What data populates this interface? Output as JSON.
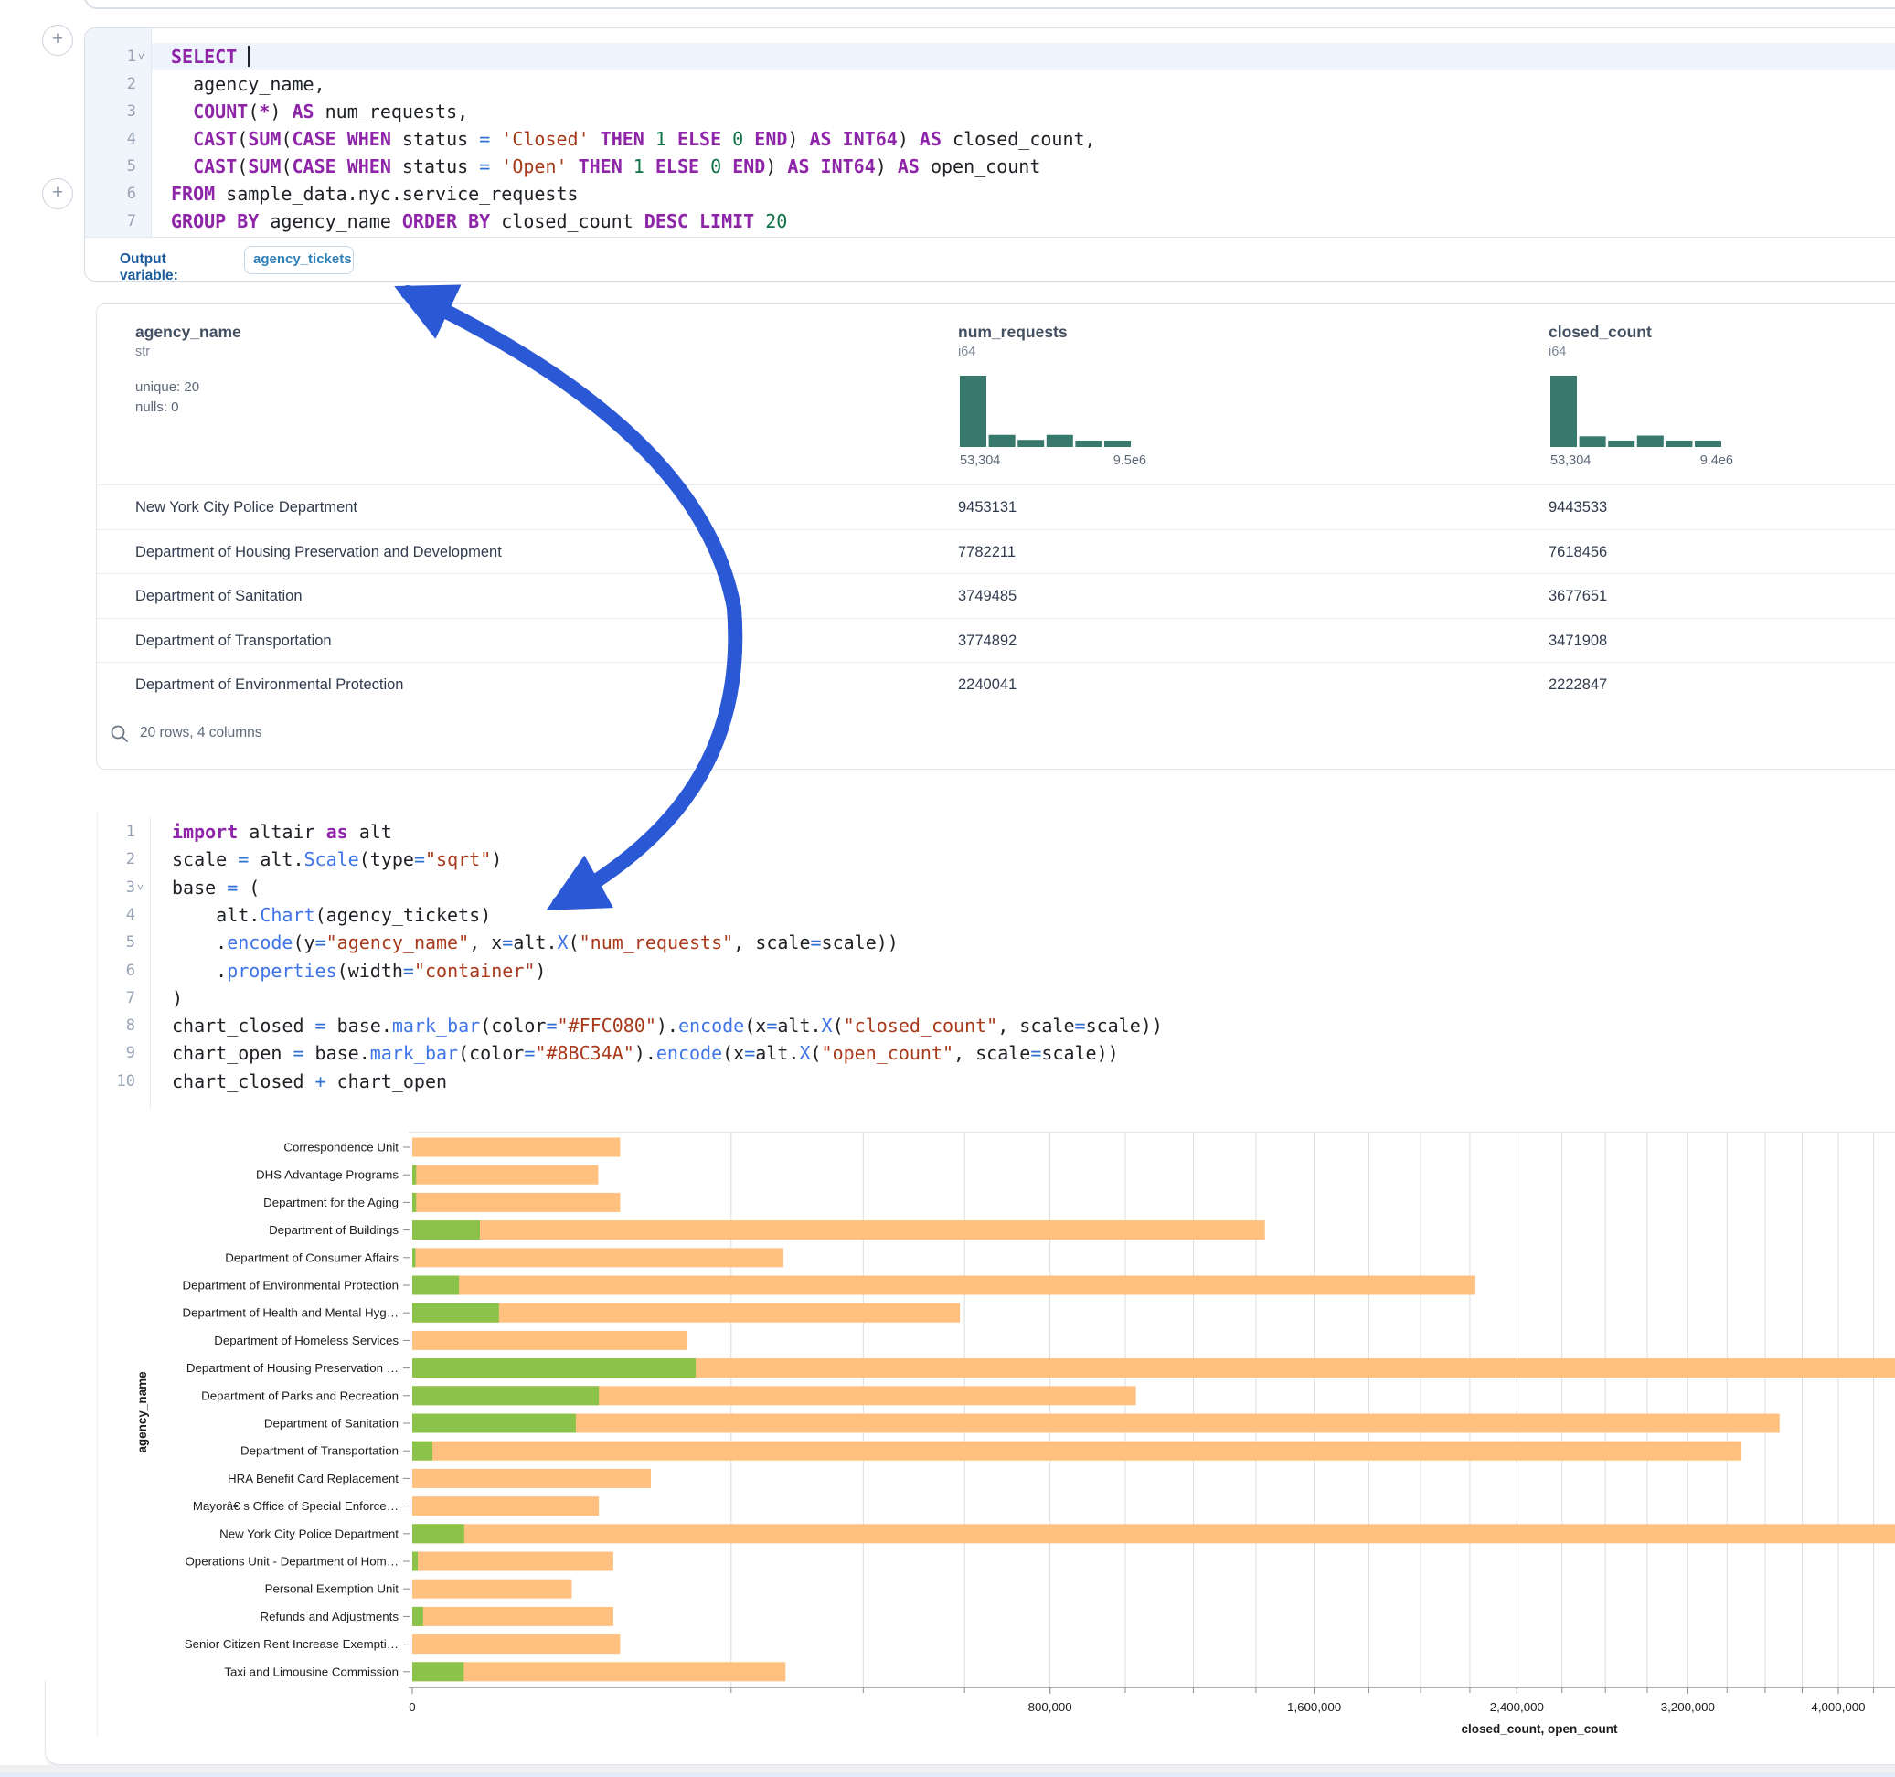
{
  "sql_cell": {
    "fold_line": 1,
    "lines": [
      {
        "caret": true,
        "segs": [
          [
            "k",
            "SELECT"
          ],
          [
            "i",
            " "
          ]
        ]
      },
      {
        "segs": [
          [
            "i",
            "  agency_name,"
          ]
        ]
      },
      {
        "segs": [
          [
            "i",
            "  "
          ],
          [
            "k",
            "COUNT"
          ],
          [
            "p",
            "("
          ],
          [
            "k",
            "*"
          ],
          [
            "p",
            ") "
          ],
          [
            "k",
            "AS"
          ],
          [
            "i",
            " num_requests,"
          ]
        ]
      },
      {
        "segs": [
          [
            "i",
            "  "
          ],
          [
            "k",
            "CAST"
          ],
          [
            "p",
            "("
          ],
          [
            "k",
            "SUM"
          ],
          [
            "p",
            "("
          ],
          [
            "k",
            "CASE WHEN"
          ],
          [
            "i",
            " status "
          ],
          [
            "o",
            "="
          ],
          [
            "s",
            " 'Closed'"
          ],
          [
            "k",
            " THEN"
          ],
          [
            "n",
            " 1"
          ],
          [
            "k",
            " ELSE"
          ],
          [
            "n",
            " 0"
          ],
          [
            "k",
            " END"
          ],
          [
            "p",
            ") "
          ],
          [
            "k",
            "AS INT64"
          ],
          [
            "p",
            ") "
          ],
          [
            "k",
            "AS"
          ],
          [
            "i",
            " closed_count,"
          ]
        ]
      },
      {
        "segs": [
          [
            "i",
            "  "
          ],
          [
            "k",
            "CAST"
          ],
          [
            "p",
            "("
          ],
          [
            "k",
            "SUM"
          ],
          [
            "p",
            "("
          ],
          [
            "k",
            "CASE WHEN"
          ],
          [
            "i",
            " status "
          ],
          [
            "o",
            "="
          ],
          [
            "s",
            " 'Open'"
          ],
          [
            "k",
            " THEN"
          ],
          [
            "n",
            " 1"
          ],
          [
            "k",
            " ELSE"
          ],
          [
            "n",
            " 0"
          ],
          [
            "k",
            " END"
          ],
          [
            "p",
            ") "
          ],
          [
            "k",
            "AS INT64"
          ],
          [
            "p",
            ") "
          ],
          [
            "k",
            "AS"
          ],
          [
            "i",
            " open_count"
          ]
        ]
      },
      {
        "segs": [
          [
            "k",
            "FROM"
          ],
          [
            "i",
            " sample_data.nyc.service_requests"
          ]
        ]
      },
      {
        "segs": [
          [
            "k",
            "GROUP BY"
          ],
          [
            "i",
            " agency_name "
          ],
          [
            "k",
            "ORDER BY"
          ],
          [
            "i",
            " closed_count "
          ],
          [
            "k",
            "DESC"
          ],
          [
            "i",
            " "
          ],
          [
            "k",
            "LIMIT"
          ],
          [
            "n",
            " 20"
          ]
        ]
      }
    ]
  },
  "output_row": {
    "label": "Output variable:",
    "variable": "agency_tickets"
  },
  "table": {
    "columns": [
      {
        "name": "agency_name",
        "type": "str",
        "stats": [
          "unique: 20",
          "nulls: 0"
        ]
      },
      {
        "name": "num_requests",
        "type": "i64",
        "hist": {
          "bars": [
            1,
            0.17,
            0.1,
            0.17,
            0.09,
            0.09
          ],
          "min_label": "53,304",
          "max_label": "9.5e6"
        }
      },
      {
        "name": "closed_count",
        "type": "i64",
        "hist": {
          "bars": [
            1,
            0.15,
            0.09,
            0.16,
            0.09,
            0.09
          ],
          "min_label": "53,304",
          "max_label": "9.4e6"
        }
      }
    ],
    "rows": [
      {
        "agency_name": "New York City Police Department",
        "num_requests": "9453131",
        "closed_count": "9443533"
      },
      {
        "agency_name": "Department of Housing Preservation and Development",
        "num_requests": "7782211",
        "closed_count": "7618456"
      },
      {
        "agency_name": "Department of Sanitation",
        "num_requests": "3749485",
        "closed_count": "3677651"
      },
      {
        "agency_name": "Department of Transportation",
        "num_requests": "3774892",
        "closed_count": "3471908"
      },
      {
        "agency_name": "Department of Environmental Protection",
        "num_requests": "2240041",
        "closed_count": "2222847"
      }
    ],
    "footer": "20 rows, 4 columns",
    "hist_color": "#37796C"
  },
  "python_cell": {
    "fold_line": 3,
    "lines": [
      {
        "segs": [
          [
            "k",
            "import"
          ],
          [
            "i",
            " altair "
          ],
          [
            "k",
            "as"
          ],
          [
            "i",
            " alt"
          ]
        ]
      },
      {
        "segs": [
          [
            "i",
            "scale "
          ],
          [
            "o",
            "="
          ],
          [
            "i",
            " alt"
          ],
          [
            "p",
            "."
          ],
          [
            "f",
            "Scale"
          ],
          [
            "p",
            "("
          ],
          [
            "i",
            "type"
          ],
          [
            "o",
            "="
          ],
          [
            "s",
            "\"sqrt\""
          ],
          [
            "p",
            ")"
          ]
        ]
      },
      {
        "segs": [
          [
            "i",
            "base "
          ],
          [
            "o",
            "="
          ],
          [
            "p",
            " ("
          ]
        ]
      },
      {
        "segs": [
          [
            "i",
            "    alt"
          ],
          [
            "p",
            "."
          ],
          [
            "f",
            "Chart"
          ],
          [
            "p",
            "("
          ],
          [
            "i",
            "agency_tickets"
          ],
          [
            "p",
            ")"
          ]
        ]
      },
      {
        "segs": [
          [
            "i",
            "    "
          ],
          [
            "p",
            "."
          ],
          [
            "f",
            "encode"
          ],
          [
            "p",
            "("
          ],
          [
            "i",
            "y"
          ],
          [
            "o",
            "="
          ],
          [
            "s",
            "\"agency_name\""
          ],
          [
            "p",
            ", "
          ],
          [
            "i",
            "x"
          ],
          [
            "o",
            "="
          ],
          [
            "i",
            "alt"
          ],
          [
            "p",
            "."
          ],
          [
            "f",
            "X"
          ],
          [
            "p",
            "("
          ],
          [
            "s",
            "\"num_requests\""
          ],
          [
            "p",
            ", "
          ],
          [
            "i",
            "scale"
          ],
          [
            "o",
            "="
          ],
          [
            "i",
            "scale"
          ],
          [
            "p",
            "))"
          ]
        ]
      },
      {
        "segs": [
          [
            "i",
            "    "
          ],
          [
            "p",
            "."
          ],
          [
            "f",
            "properties"
          ],
          [
            "p",
            "("
          ],
          [
            "i",
            "width"
          ],
          [
            "o",
            "="
          ],
          [
            "s",
            "\"container\""
          ],
          [
            "p",
            ")"
          ]
        ]
      },
      {
        "segs": [
          [
            "p",
            ")"
          ]
        ]
      },
      {
        "segs": [
          [
            "i",
            "chart_closed "
          ],
          [
            "o",
            "="
          ],
          [
            "i",
            " base"
          ],
          [
            "p",
            "."
          ],
          [
            "f",
            "mark_bar"
          ],
          [
            "p",
            "("
          ],
          [
            "i",
            "color"
          ],
          [
            "o",
            "="
          ],
          [
            "s",
            "\"#FFC080\""
          ],
          [
            "p",
            ")."
          ],
          [
            "f",
            "encode"
          ],
          [
            "p",
            "("
          ],
          [
            "i",
            "x"
          ],
          [
            "o",
            "="
          ],
          [
            "i",
            "alt"
          ],
          [
            "p",
            "."
          ],
          [
            "f",
            "X"
          ],
          [
            "p",
            "("
          ],
          [
            "s",
            "\"closed_count\""
          ],
          [
            "p",
            ", "
          ],
          [
            "i",
            "scale"
          ],
          [
            "o",
            "="
          ],
          [
            "i",
            "scale"
          ],
          [
            "p",
            "))"
          ]
        ]
      },
      {
        "segs": [
          [
            "i",
            "chart_open "
          ],
          [
            "o",
            "="
          ],
          [
            "i",
            " base"
          ],
          [
            "p",
            "."
          ],
          [
            "f",
            "mark_bar"
          ],
          [
            "p",
            "("
          ],
          [
            "i",
            "color"
          ],
          [
            "o",
            "="
          ],
          [
            "s",
            "\"#8BC34A\""
          ],
          [
            "p",
            ")."
          ],
          [
            "f",
            "encode"
          ],
          [
            "p",
            "("
          ],
          [
            "i",
            "x"
          ],
          [
            "o",
            "="
          ],
          [
            "i",
            "alt"
          ],
          [
            "p",
            "."
          ],
          [
            "f",
            "X"
          ],
          [
            "p",
            "("
          ],
          [
            "s",
            "\"open_count\""
          ],
          [
            "p",
            ", "
          ],
          [
            "i",
            "scale"
          ],
          [
            "o",
            "="
          ],
          [
            "i",
            "scale"
          ],
          [
            "p",
            "))"
          ]
        ]
      },
      {
        "segs": [
          [
            "i",
            "chart_closed "
          ],
          [
            "o",
            "+"
          ],
          [
            "i",
            " chart_open"
          ]
        ]
      }
    ]
  },
  "chart_data": {
    "type": "bar",
    "orientation": "horizontal",
    "scale": "sqrt",
    "xlabel": "closed_count, open_count",
    "ylabel": "agency_name",
    "grid": true,
    "gridline_step": 200000,
    "x_ticks": [
      {
        "value": 0,
        "label": "0"
      },
      {
        "value": 800000,
        "label": "800,000"
      },
      {
        "value": 1600000,
        "label": "1,600,000"
      },
      {
        "value": 2400000,
        "label": "2,400,000"
      },
      {
        "value": 3200000,
        "label": "3,200,000"
      },
      {
        "value": 4000000,
        "label": "4,000,000"
      }
    ],
    "categories": [
      "Correspondence Unit",
      "DHS Advantage Programs",
      "Department for the Aging",
      "Department of Buildings",
      "Department of Consumer Affairs",
      "Department of Environmental Protection",
      "Department of Health and Mental Hyg…",
      "Department of Homeless Services",
      "Department of Housing Preservation …",
      "Department of Parks and Recreation",
      "Department of Sanitation",
      "Department of Transportation",
      "HRA Benefit Card Replacement",
      "Mayorâ€ s Office of Special Enforce…",
      "New York City Police Department",
      "Operations Unit - Department of Hom…",
      "Personal Exemption Unit",
      "Refunds and Adjustments",
      "Senior Citizen Rent Increase Exempti…",
      "Taxi and Limousine Commission"
    ],
    "series": [
      {
        "name": "closed_count",
        "color": "#FFC080",
        "values": [
          85000,
          68000,
          85000,
          1430000,
          271000,
          2222847,
          590000,
          149000,
          7618456,
          1030000,
          3677651,
          3471908,
          112000,
          68500,
          9443533,
          79500,
          50000,
          79500,
          85000,
          274000
        ]
      },
      {
        "name": "open_count",
        "color": "#8BC34A",
        "values": [
          0,
          30,
          30,
          9000,
          20,
          4300,
          14800,
          0,
          158000,
          68500,
          52600,
          800,
          0,
          0,
          5300,
          60,
          0,
          230,
          0,
          5200
        ]
      }
    ]
  },
  "annotation": {
    "arrow_color": "#2b59d6"
  }
}
